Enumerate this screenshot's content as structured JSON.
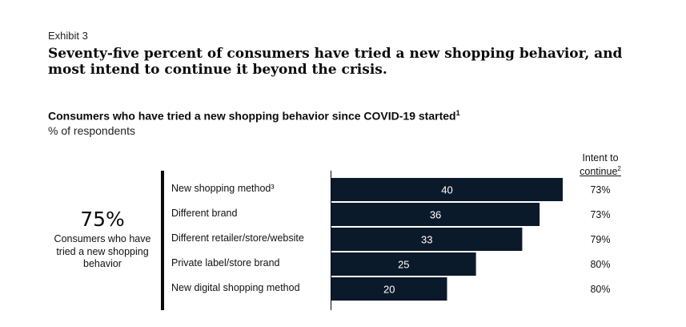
{
  "exhibit_label": "Exhibit 3",
  "headline": "Seventy-five percent of consumers have tried a new shopping behavior, and most intend to continue it beyond the crisis.",
  "chart_data": {
    "type": "bar",
    "orientation": "horizontal",
    "title": "Consumers who have tried a new shopping behavior since COVID-19 started",
    "title_footnote": "1",
    "subtitle": "% of respondents",
    "categories": [
      "New shopping method³",
      "Different brand",
      "Different retailer/store/website",
      "Private label/store brand",
      "New digital shopping method"
    ],
    "values": [
      40,
      36,
      33,
      25,
      20
    ],
    "value_labels": [
      "40",
      "36",
      "33",
      "25",
      "20"
    ],
    "bar_color": "#0b1a2a",
    "value_label_color": "#ffffff",
    "xlim": [
      0,
      40
    ],
    "intent_header_line1": "Intent to",
    "intent_header_line2": "continue",
    "intent_header_footnote": "2",
    "intent_to_continue": [
      "73%",
      "73%",
      "79%",
      "80%",
      "80%"
    ]
  },
  "summary": {
    "stat": "75%",
    "description": "Consumers who have tried a new shopping behavior"
  }
}
